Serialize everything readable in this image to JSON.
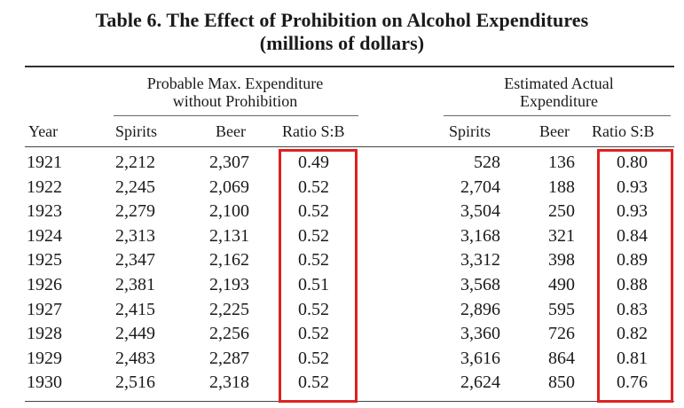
{
  "title": {
    "line1": "Table 6. The Effect of Prohibition on Alcohol Expenditures",
    "line2": "(millions of dollars)"
  },
  "groups": {
    "probable": {
      "line1": "Probable Max. Expenditure",
      "line2": "without Prohibition"
    },
    "actual": {
      "line1": "Estimated Actual",
      "line2": "Expenditure"
    }
  },
  "headers": {
    "year": "Year",
    "spirits1": "Spirits",
    "beer1": "Beer",
    "ratio1": "Ratio S:B",
    "spirits2": "Spirits",
    "beer2": "Beer",
    "ratio2": "Ratio S:B"
  },
  "rows": [
    {
      "year": "1921",
      "spirits1": "2,212",
      "beer1": "2,307",
      "ratio1": "0.49",
      "spirits2": "528",
      "beer2": "136",
      "ratio2": "0.80"
    },
    {
      "year": "1922",
      "spirits1": "2,245",
      "beer1": "2,069",
      "ratio1": "0.52",
      "spirits2": "2,704",
      "beer2": "188",
      "ratio2": "0.93"
    },
    {
      "year": "1923",
      "spirits1": "2,279",
      "beer1": "2,100",
      "ratio1": "0.52",
      "spirits2": "3,504",
      "beer2": "250",
      "ratio2": "0.93"
    },
    {
      "year": "1924",
      "spirits1": "2,313",
      "beer1": "2,131",
      "ratio1": "0.52",
      "spirits2": "3,168",
      "beer2": "321",
      "ratio2": "0.84"
    },
    {
      "year": "1925",
      "spirits1": "2,347",
      "beer1": "2,162",
      "ratio1": "0.52",
      "spirits2": "3,312",
      "beer2": "398",
      "ratio2": "0.89"
    },
    {
      "year": "1926",
      "spirits1": "2,381",
      "beer1": "2,193",
      "ratio1": "0.51",
      "spirits2": "3,568",
      "beer2": "490",
      "ratio2": "0.88"
    },
    {
      "year": "1927",
      "spirits1": "2,415",
      "beer1": "2,225",
      "ratio1": "0.52",
      "spirits2": "2,896",
      "beer2": "595",
      "ratio2": "0.83"
    },
    {
      "year": "1928",
      "spirits1": "2,449",
      "beer1": "2,256",
      "ratio1": "0.52",
      "spirits2": "3,360",
      "beer2": "726",
      "ratio2": "0.82"
    },
    {
      "year": "1929",
      "spirits1": "2,483",
      "beer1": "2,287",
      "ratio1": "0.52",
      "spirits2": "3,616",
      "beer2": "864",
      "ratio2": "0.81"
    },
    {
      "year": "1930",
      "spirits1": "2,516",
      "beer1": "2,318",
      "ratio1": "0.52",
      "spirits2": "2,624",
      "beer2": "850",
      "ratio2": "0.76"
    }
  ],
  "colors": {
    "highlight": "#e02020",
    "text": "#1a1a1a"
  }
}
